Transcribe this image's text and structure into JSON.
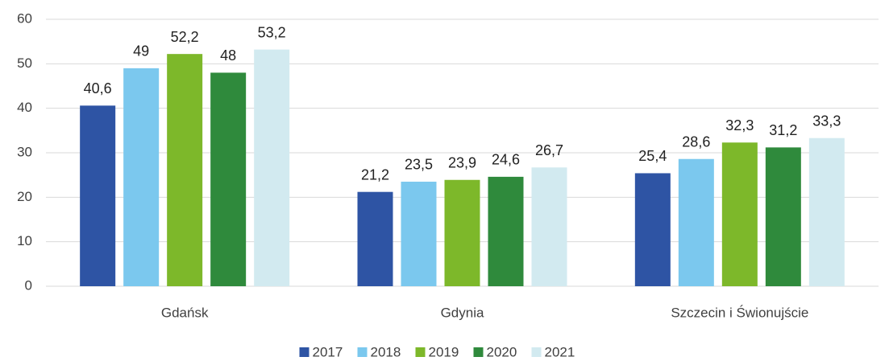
{
  "chart_data": {
    "type": "bar",
    "categories": [
      "Gdańsk",
      "Gdynia",
      "Szczecin i Świonujście"
    ],
    "series": [
      {
        "name": "2017",
        "color": "#2e54a4",
        "values": [
          40.6,
          21.2,
          25.4
        ],
        "value_labels": [
          "40,6",
          "21,2",
          "25,4"
        ]
      },
      {
        "name": "2018",
        "color": "#7bc8ee",
        "values": [
          49,
          23.5,
          28.6
        ],
        "value_labels": [
          "49",
          "23,5",
          "28,6"
        ]
      },
      {
        "name": "2019",
        "color": "#7db82a",
        "values": [
          52.2,
          23.9,
          32.3
        ],
        "value_labels": [
          "52,2",
          "23,9",
          "32,3"
        ]
      },
      {
        "name": "2020",
        "color": "#2f8a3c",
        "values": [
          48,
          24.6,
          31.2
        ],
        "value_labels": [
          "48",
          "24,6",
          "31,2"
        ]
      },
      {
        "name": "2021",
        "color": "#d2eaf0",
        "values": [
          53.2,
          26.7,
          33.3
        ],
        "value_labels": [
          "53,2",
          "26,7",
          "33,3"
        ]
      }
    ],
    "ylim": [
      0,
      60
    ],
    "yticks": [
      0,
      10,
      20,
      30,
      40,
      50,
      60
    ],
    "grid": true,
    "legend": "bottom"
  }
}
